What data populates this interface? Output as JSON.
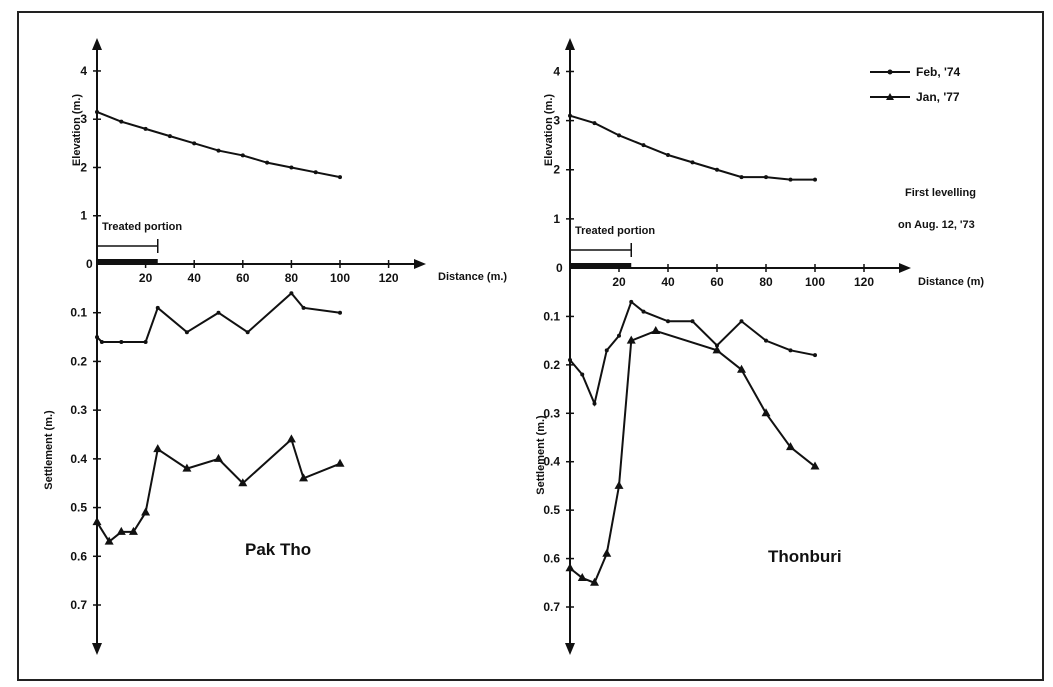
{
  "legend": {
    "series_a": "Feb, '74",
    "series_b": "Jan, '77"
  },
  "note": {
    "line1": "First levelling",
    "line2": "on Aug. 12, '73"
  },
  "chart_data": [
    {
      "type": "line",
      "title": "Pak Tho",
      "treated_label": "Treated portion",
      "treated_range": [
        0,
        25
      ],
      "x_axis": {
        "label": "Distance (m.)",
        "ticks": [
          "20",
          "40",
          "60",
          "80",
          "100",
          "120"
        ],
        "tick_values": [
          20,
          40,
          60,
          80,
          100,
          120
        ],
        "range": [
          0,
          145
        ]
      },
      "elevation_axis": {
        "label": "Elevation (m.)",
        "ticks": [
          "1",
          "2",
          "3",
          "4"
        ],
        "range": [
          0,
          4.6
        ]
      },
      "settlement_axis": {
        "label": "Settlement (m.)",
        "ticks": [
          "0.1",
          "0.2",
          "0.3",
          "0.4",
          "0.5",
          "0.6",
          "0.7"
        ],
        "range": [
          0,
          0.8
        ],
        "inverted": true
      },
      "zero_label": "0",
      "elevation_profile": {
        "x": [
          0,
          10,
          20,
          30,
          40,
          50,
          60,
          70,
          80,
          90,
          100
        ],
        "y": [
          3.15,
          2.95,
          2.8,
          2.65,
          2.5,
          2.35,
          2.25,
          2.1,
          2.0,
          1.9,
          1.8
        ]
      },
      "series": [
        {
          "name": "Feb, '74",
          "x": [
            0,
            2,
            10,
            20,
            25,
            37,
            50,
            62,
            80,
            85,
            100
          ],
          "y": [
            0.15,
            0.16,
            0.16,
            0.16,
            0.09,
            0.14,
            0.1,
            0.14,
            0.06,
            0.09,
            0.1
          ]
        },
        {
          "name": "Jan, '77",
          "x": [
            0,
            5,
            10,
            15,
            20,
            25,
            37,
            50,
            60,
            80,
            85,
            100
          ],
          "y": [
            0.53,
            0.57,
            0.55,
            0.55,
            0.51,
            0.38,
            0.42,
            0.4,
            0.45,
            0.36,
            0.44,
            0.41
          ]
        }
      ]
    },
    {
      "type": "line",
      "title": "Thonburi",
      "treated_label": "Treated portion",
      "treated_range": [
        0,
        25
      ],
      "x_axis": {
        "label": "Distance (m)",
        "ticks": [
          "20",
          "40",
          "60",
          "80",
          "100",
          "120"
        ],
        "tick_values": [
          20,
          40,
          60,
          80,
          100,
          120
        ],
        "range": [
          0,
          140
        ]
      },
      "elevation_axis": {
        "label": "Elevation (m.)",
        "ticks": [
          "1",
          "2",
          "3",
          "4"
        ],
        "range": [
          0,
          4.6
        ]
      },
      "settlement_axis": {
        "label": "Settlement (m.)",
        "ticks": [
          "0.1",
          "0.2",
          "0.3",
          "0.4",
          "0.5",
          "0.6",
          "0.7"
        ],
        "range": [
          0,
          0.8
        ],
        "inverted": true
      },
      "zero_label": "0",
      "elevation_profile": {
        "x": [
          0,
          10,
          20,
          30,
          40,
          50,
          60,
          70,
          80,
          90,
          100
        ],
        "y": [
          3.1,
          2.95,
          2.7,
          2.5,
          2.3,
          2.15,
          2.0,
          1.85,
          1.85,
          1.8,
          1.8
        ]
      },
      "series": [
        {
          "name": "Feb, '74",
          "x": [
            0,
            5,
            10,
            15,
            20,
            25,
            30,
            40,
            50,
            60,
            70,
            80,
            90,
            100
          ],
          "y": [
            0.19,
            0.22,
            0.28,
            0.17,
            0.14,
            0.07,
            0.09,
            0.11,
            0.11,
            0.16,
            0.11,
            0.15,
            0.17,
            0.18
          ]
        },
        {
          "name": "Jan, '77",
          "x": [
            0,
            5,
            10,
            15,
            20,
            25,
            35,
            60,
            70,
            80,
            90,
            100
          ],
          "y": [
            0.62,
            0.64,
            0.65,
            0.59,
            0.45,
            0.15,
            0.13,
            0.17,
            0.21,
            0.3,
            0.37,
            0.41
          ]
        }
      ]
    }
  ]
}
